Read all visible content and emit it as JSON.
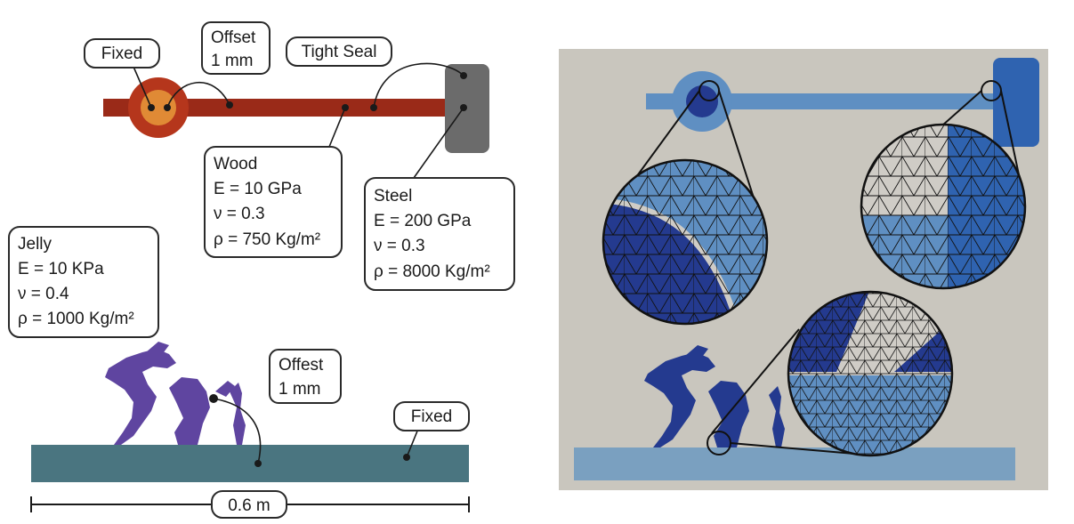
{
  "labels": {
    "fixed_top": "Fixed",
    "offset_top": [
      "Offset",
      "1 mm"
    ],
    "tight_seal": "Tight Seal",
    "wood": [
      "Wood",
      "E = 10 GPa",
      "ν = 0.3",
      "ρ = 750 Kg/m²"
    ],
    "steel": [
      "Steel",
      "E = 200 GPa",
      "ν = 0.3",
      "ρ = 8000 Kg/m²"
    ],
    "jelly": [
      "Jelly",
      "E = 10 KPa",
      "ν = 0.4",
      "ρ = 1000 Kg/m²"
    ],
    "offset_bottom": [
      "Offest",
      "1 mm"
    ],
    "fixed_bottom": "Fixed",
    "dimension": "0.6 m"
  },
  "colors": {
    "wood": "#9a2a18",
    "pivot_outer": "#b5361c",
    "pivot_inner": "#e08a35",
    "steel": "#6b6b6b",
    "jelly": "#5f45a0",
    "ground": "#4a7580",
    "sim_bg": "#c9c6be",
    "sim_light_blue": "#5f8fc2",
    "sim_mid_blue": "#2f63b0",
    "sim_dark_blue": "#243a8f",
    "sim_ground": "#7aa0c0",
    "mesh_grey": "#cfccc6"
  },
  "icons": [
    "dragon-icon"
  ]
}
